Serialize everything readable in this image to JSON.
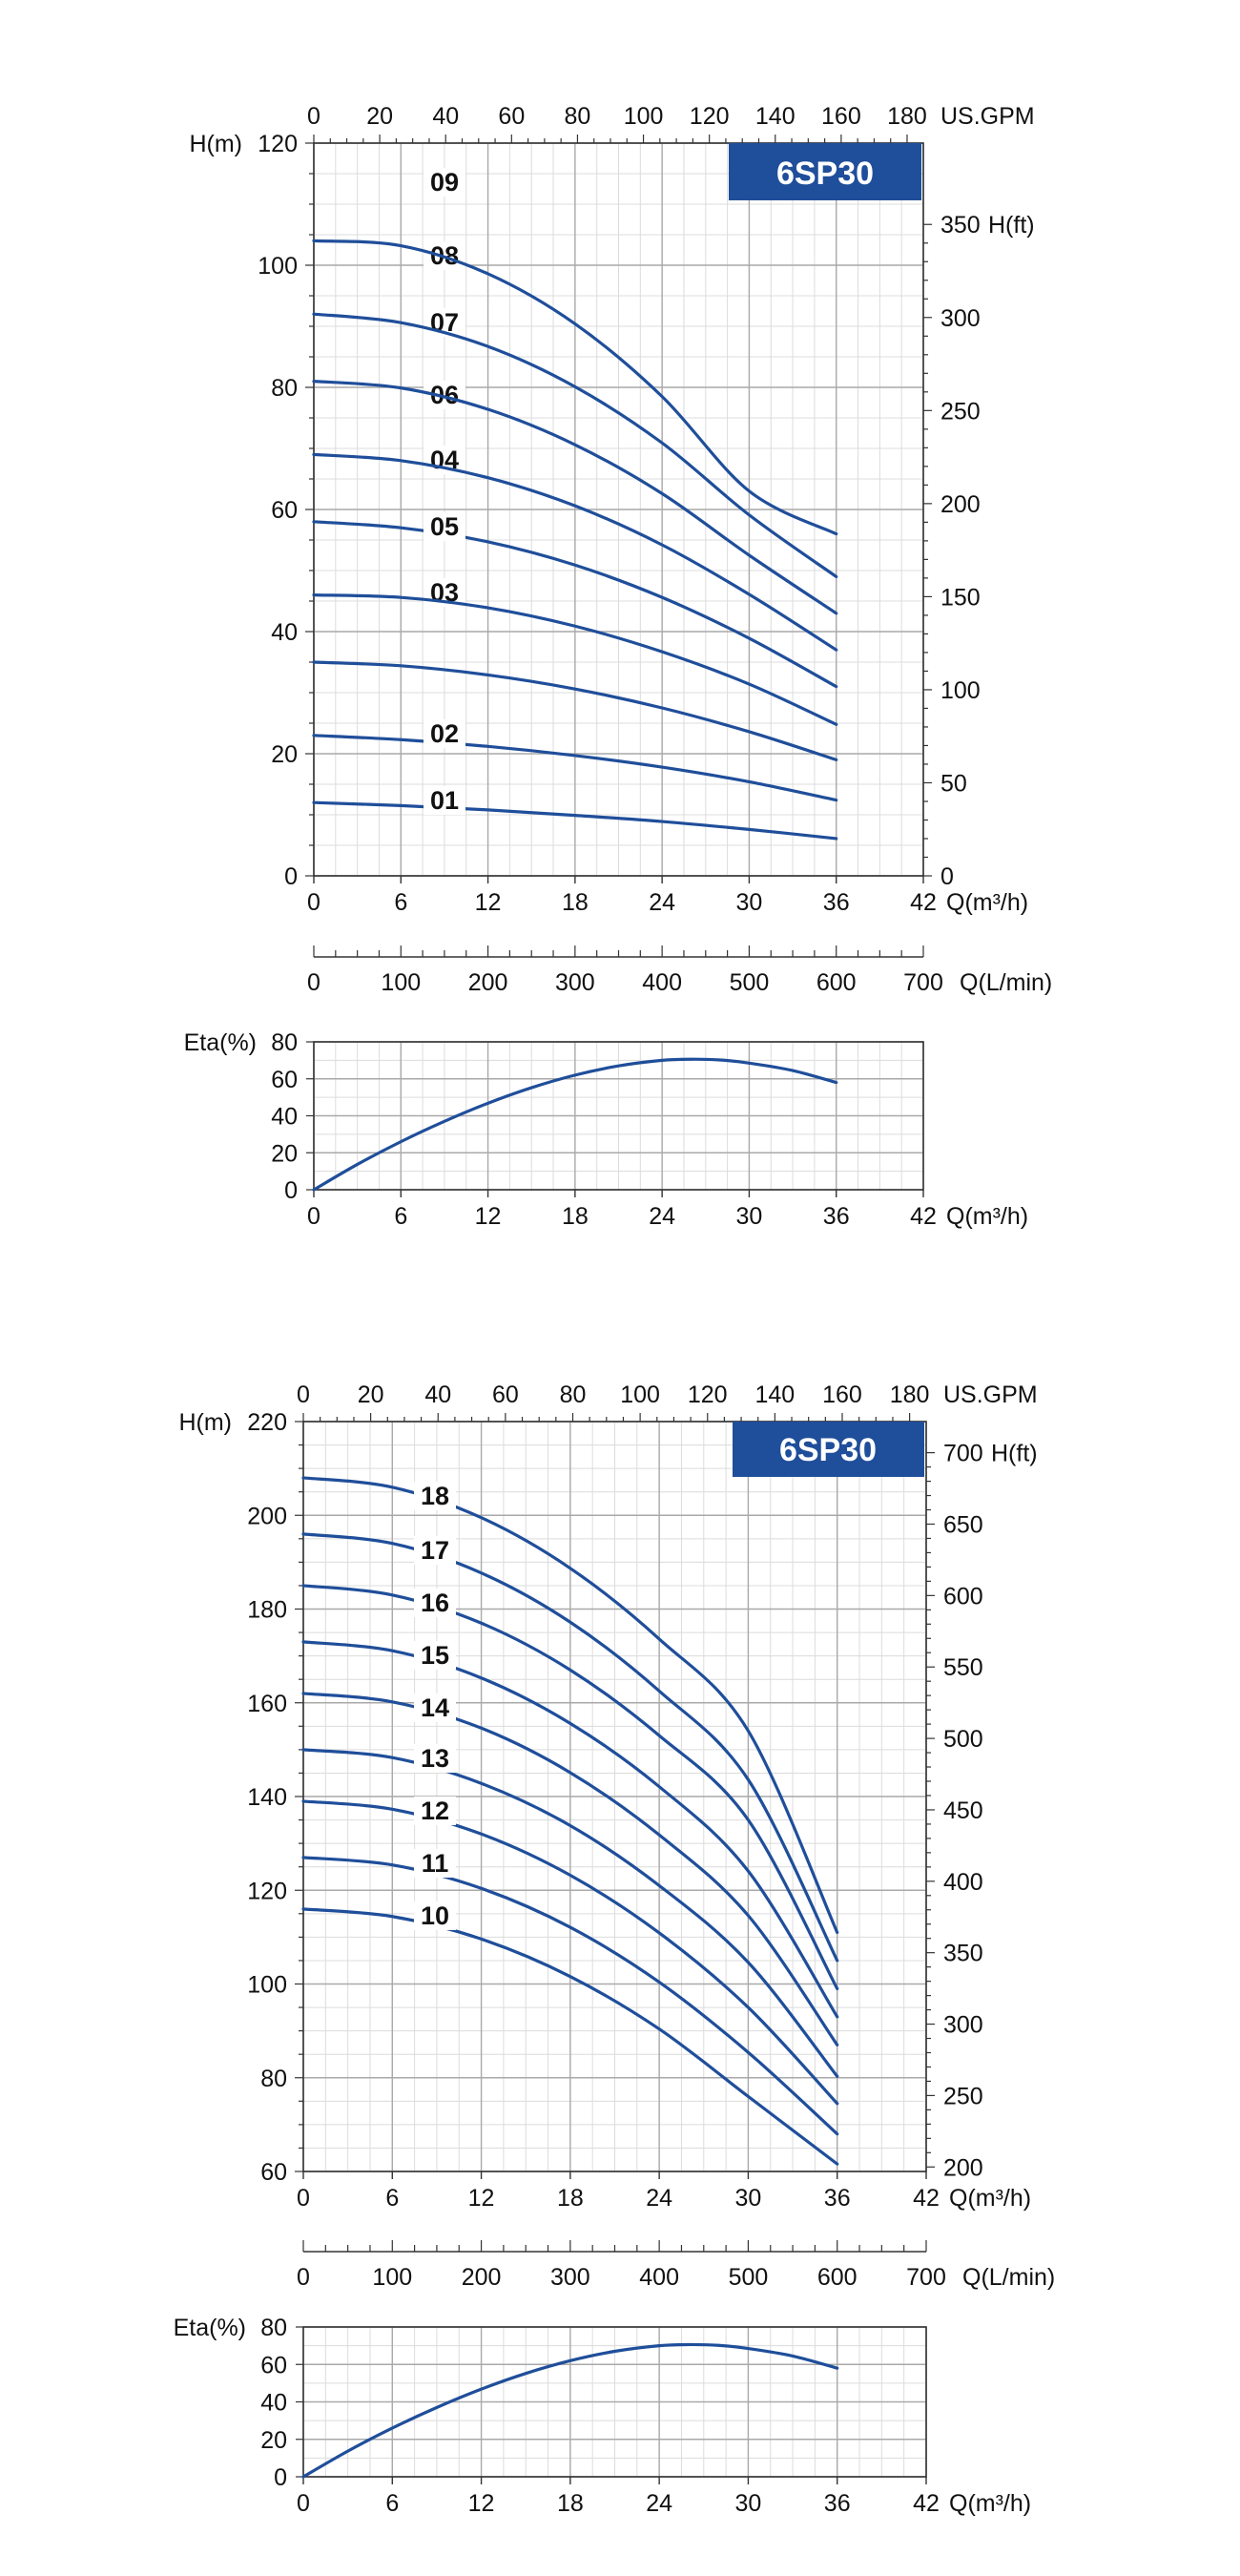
{
  "chart_data": [
    {
      "type": "line",
      "title": "6SP30",
      "xlabel": "Q(m³/h)",
      "ylabel": "H(m)",
      "xlim": [
        0,
        42
      ],
      "ylim": [
        0,
        120
      ],
      "x_ticks": [
        0,
        6,
        12,
        18,
        24,
        30,
        36,
        42
      ],
      "y_ticks": [
        0,
        20,
        40,
        60,
        80,
        100,
        120
      ],
      "top_axis": {
        "label": "US.GPM",
        "ticks": [
          0,
          20,
          40,
          60,
          80,
          100,
          120,
          140,
          160,
          180
        ]
      },
      "right_axis": {
        "label": "H(ft)",
        "ticks": [
          0,
          50,
          100,
          150,
          200,
          250,
          300,
          350
        ]
      },
      "grid": true,
      "series": [
        {
          "name": "01",
          "x": [
            0,
            6,
            12,
            18,
            24,
            30,
            36
          ],
          "values": [
            12,
            11.5,
            10.8,
            9.9,
            8.9,
            7.6,
            6.1
          ]
        },
        {
          "name": "02",
          "x": [
            0,
            6,
            12,
            18,
            24,
            30,
            36
          ],
          "values": [
            23,
            22.3,
            21.2,
            19.7,
            17.8,
            15.4,
            12.4
          ]
        },
        {
          "name": "03",
          "x": [
            0,
            6,
            12,
            18,
            24,
            30,
            36
          ],
          "values": [
            35,
            34.4,
            32.9,
            30.6,
            27.5,
            23.6,
            19
          ]
        },
        {
          "name": "04",
          "x": [
            0,
            6,
            12,
            18,
            24,
            30,
            36
          ],
          "values": [
            46,
            45.6,
            43.9,
            40.9,
            36.7,
            31.4,
            24.8
          ]
        },
        {
          "name": "05",
          "x": [
            0,
            6,
            12,
            18,
            24,
            30,
            36
          ],
          "values": [
            58,
            57,
            54.7,
            50.9,
            45.6,
            38.9,
            31
          ]
        },
        {
          "name": "06",
          "x": [
            0,
            6,
            12,
            18,
            24,
            30,
            36
          ],
          "values": [
            69,
            68,
            65.2,
            60.6,
            54.2,
            46.1,
            37
          ]
        },
        {
          "name": "07",
          "x": [
            0,
            6,
            12,
            18,
            24,
            30,
            36
          ],
          "values": [
            81,
            79.9,
            76.4,
            70.6,
            62.6,
            52.5,
            43
          ]
        },
        {
          "name": "08",
          "x": [
            0,
            6,
            12,
            18,
            24,
            30,
            36
          ],
          "values": [
            92,
            90.6,
            86.7,
            80.1,
            70.9,
            59.1,
            49
          ]
        },
        {
          "name": "09",
          "x": [
            0,
            6,
            12,
            18,
            24,
            30,
            36
          ],
          "values": [
            104,
            103.2,
            98.6,
            90.4,
            78.5,
            63,
            56
          ]
        }
      ]
    },
    {
      "type": "line",
      "xlabel": "Q(L/min)",
      "xlim": [
        0,
        700
      ],
      "x_ticks": [
        0,
        100,
        200,
        300,
        400,
        500,
        600,
        700
      ]
    },
    {
      "type": "line",
      "ylabel": "Eta(%)",
      "xlabel": "Q(m³/h)",
      "xlim": [
        0,
        42
      ],
      "ylim": [
        0,
        80
      ],
      "x_ticks": [
        0,
        6,
        12,
        18,
        24,
        30,
        36,
        42
      ],
      "y_ticks": [
        0,
        20,
        40,
        60,
        80
      ],
      "grid": true,
      "series": [
        {
          "name": "",
          "x": [
            0,
            3,
            6,
            9,
            12,
            15,
            18,
            21,
            24,
            26,
            28,
            30,
            33,
            36
          ],
          "values": [
            0,
            13.7,
            26,
            37,
            46.8,
            55.2,
            62,
            67,
            70,
            70.6,
            70.2,
            68.5,
            64.5,
            58
          ]
        }
      ]
    },
    {
      "type": "line",
      "title": "6SP30",
      "xlabel": "Q(m³/h)",
      "ylabel": "H(m)",
      "xlim": [
        0,
        42
      ],
      "ylim": [
        60,
        220
      ],
      "x_ticks": [
        0,
        6,
        12,
        18,
        24,
        30,
        36,
        42
      ],
      "y_ticks": [
        60,
        80,
        100,
        120,
        140,
        160,
        180,
        200,
        220
      ],
      "top_axis": {
        "label": "US.GPM",
        "ticks": [
          0,
          20,
          40,
          60,
          80,
          100,
          120,
          140,
          160,
          180
        ]
      },
      "right_axis": {
        "label": "H(ft)",
        "ticks": [
          200,
          250,
          300,
          350,
          400,
          450,
          500,
          550,
          600,
          650,
          700
        ]
      },
      "grid": true,
      "series": [
        {
          "name": "10",
          "x": [
            0,
            6,
            12,
            18,
            24,
            30,
            36
          ],
          "values": [
            116,
            114.4,
            109.6,
            101.6,
            90.4,
            76,
            61.6
          ]
        },
        {
          "name": "11",
          "x": [
            0,
            6,
            12,
            18,
            24,
            30,
            36
          ],
          "values": [
            127,
            125.4,
            120.4,
            112.1,
            100.4,
            85.4,
            68
          ]
        },
        {
          "name": "12",
          "x": [
            0,
            6,
            12,
            18,
            24,
            30,
            36
          ],
          "values": [
            139,
            137.3,
            132,
            123.2,
            110.9,
            95,
            74.5
          ]
        },
        {
          "name": "13",
          "x": [
            0,
            6,
            12,
            18,
            24,
            30,
            36
          ],
          "values": [
            150,
            148.3,
            142.8,
            133.8,
            121,
            104.6,
            80.3
          ]
        },
        {
          "name": "14",
          "x": [
            0,
            6,
            12,
            18,
            24,
            30,
            36
          ],
          "values": [
            162,
            160.2,
            154.6,
            145.1,
            131.8,
            114.6,
            87
          ]
        },
        {
          "name": "15",
          "x": [
            0,
            6,
            12,
            18,
            24,
            30,
            36
          ],
          "values": [
            173,
            171.1,
            165.3,
            155.6,
            142.1,
            124.1,
            93
          ]
        },
        {
          "name": "16",
          "x": [
            0,
            6,
            12,
            18,
            24,
            30,
            36
          ],
          "values": [
            185,
            183,
            177,
            167,
            153,
            135,
            99
          ]
        },
        {
          "name": "17",
          "x": [
            0,
            6,
            12,
            18,
            24,
            30,
            36
          ],
          "values": [
            196,
            194,
            187.7,
            177.2,
            162.5,
            143.6,
            105
          ]
        },
        {
          "name": "18",
          "x": [
            0,
            6,
            12,
            18,
            24,
            30,
            36
          ],
          "values": [
            208,
            206,
            199.5,
            188.7,
            173.6,
            154,
            111
          ]
        }
      ]
    },
    {
      "type": "line",
      "xlabel": "Q(L/min)",
      "xlim": [
        0,
        700
      ],
      "x_ticks": [
        0,
        100,
        200,
        300,
        400,
        500,
        600,
        700
      ]
    },
    {
      "type": "line",
      "ylabel": "Eta(%)",
      "xlabel": "Q(m³/h)",
      "xlim": [
        0,
        42
      ],
      "ylim": [
        0,
        80
      ],
      "x_ticks": [
        0,
        6,
        12,
        18,
        24,
        30,
        36,
        42
      ],
      "y_ticks": [
        0,
        20,
        40,
        60,
        80
      ],
      "grid": true,
      "series": [
        {
          "name": "",
          "x": [
            0,
            3,
            6,
            9,
            12,
            15,
            18,
            21,
            24,
            26,
            28,
            30,
            33,
            36
          ],
          "values": [
            0,
            13.7,
            26,
            37,
            46.8,
            55.2,
            62,
            67,
            70,
            70.6,
            70.2,
            68.5,
            64.5,
            58
          ]
        }
      ]
    }
  ],
  "colors": {
    "curve": "#1f4e9a",
    "badge": "#1f4e9a",
    "grid_major": "#a9a9a9",
    "grid_minor": "#dcdcdc",
    "axis": "#333333"
  }
}
